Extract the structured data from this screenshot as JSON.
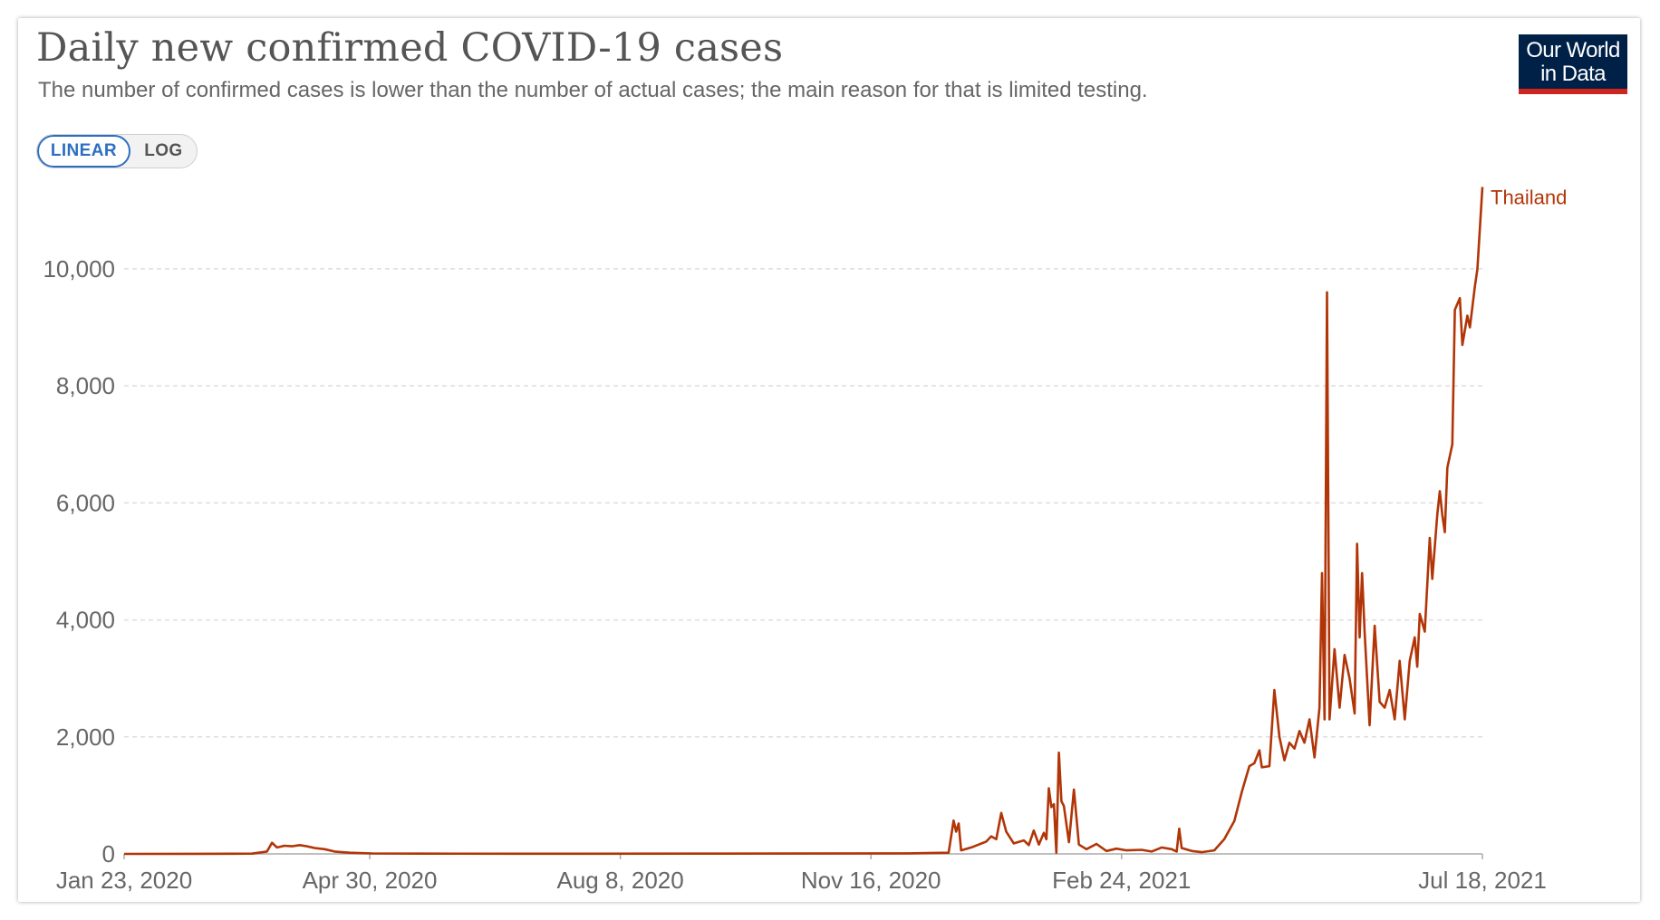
{
  "header": {
    "title": "Daily new confirmed COVID-19 cases",
    "subtitle": "The number of confirmed cases is lower than the number of actual cases; the main reason for that is limited testing."
  },
  "logo": {
    "line1": "Our World",
    "line2": "in Data"
  },
  "scale_toggle": {
    "linear_label": "LINEAR",
    "log_label": "LOG",
    "selected": "linear"
  },
  "colors": {
    "series": "#b13507",
    "grid": "#dddddd",
    "logo_bg": "#002147",
    "logo_bar": "#ce261e",
    "toggle_active": "#2c6fc1"
  },
  "chart_data": {
    "type": "line",
    "title": "Daily new confirmed COVID-19 cases",
    "xlabel": "",
    "ylabel": "",
    "xlim": [
      "2020-01-23",
      "2021-07-18"
    ],
    "ylim": [
      0,
      11500
    ],
    "grid": {
      "y": true,
      "x": false,
      "style": "dashed"
    },
    "yticks": [
      0,
      2000,
      4000,
      6000,
      8000,
      10000
    ],
    "ytick_labels": [
      "0",
      "2,000",
      "4,000",
      "6,000",
      "8,000",
      "10,000"
    ],
    "xticks": [
      "2020-01-23",
      "2020-04-30",
      "2020-08-08",
      "2020-11-16",
      "2021-02-24",
      "2021-07-18"
    ],
    "xtick_labels": [
      "Jan 23, 2020",
      "Apr 30, 2020",
      "Aug 8, 2020",
      "Nov 16, 2020",
      "Feb 24, 2021",
      "Jul 18, 2021"
    ],
    "legend": "inline-end",
    "series": [
      {
        "name": "Thailand",
        "color": "#b13507",
        "points": [
          [
            "2020-01-23",
            0
          ],
          [
            "2020-02-20",
            1
          ],
          [
            "2020-03-14",
            5
          ],
          [
            "2020-03-20",
            40
          ],
          [
            "2020-03-22",
            190
          ],
          [
            "2020-03-24",
            110
          ],
          [
            "2020-03-27",
            140
          ],
          [
            "2020-03-30",
            130
          ],
          [
            "2020-04-02",
            150
          ],
          [
            "2020-04-05",
            130
          ],
          [
            "2020-04-08",
            100
          ],
          [
            "2020-04-12",
            80
          ],
          [
            "2020-04-16",
            40
          ],
          [
            "2020-04-22",
            20
          ],
          [
            "2020-05-01",
            8
          ],
          [
            "2020-05-20",
            5
          ],
          [
            "2020-06-30",
            3
          ],
          [
            "2020-09-15",
            5
          ],
          [
            "2020-12-01",
            10
          ],
          [
            "2020-12-17",
            20
          ],
          [
            "2020-12-19",
            570
          ],
          [
            "2020-12-20",
            380
          ],
          [
            "2020-12-21",
            520
          ],
          [
            "2020-12-22",
            60
          ],
          [
            "2020-12-26",
            110
          ],
          [
            "2021-01-01",
            210
          ],
          [
            "2021-01-03",
            300
          ],
          [
            "2021-01-05",
            250
          ],
          [
            "2021-01-07",
            700
          ],
          [
            "2021-01-09",
            380
          ],
          [
            "2021-01-12",
            180
          ],
          [
            "2021-01-16",
            230
          ],
          [
            "2021-01-18",
            150
          ],
          [
            "2021-01-20",
            400
          ],
          [
            "2021-01-22",
            160
          ],
          [
            "2021-01-24",
            360
          ],
          [
            "2021-01-25",
            250
          ],
          [
            "2021-01-26",
            1120
          ],
          [
            "2021-01-27",
            800
          ],
          [
            "2021-01-28",
            850
          ],
          [
            "2021-01-29",
            20
          ],
          [
            "2021-01-30",
            1730
          ],
          [
            "2021-01-31",
            900
          ],
          [
            "2021-02-01",
            820
          ],
          [
            "2021-02-03",
            200
          ],
          [
            "2021-02-05",
            1100
          ],
          [
            "2021-02-07",
            160
          ],
          [
            "2021-02-10",
            80
          ],
          [
            "2021-02-14",
            170
          ],
          [
            "2021-02-18",
            50
          ],
          [
            "2021-02-22",
            90
          ],
          [
            "2021-02-26",
            60
          ],
          [
            "2021-03-04",
            70
          ],
          [
            "2021-03-08",
            40
          ],
          [
            "2021-03-12",
            110
          ],
          [
            "2021-03-16",
            80
          ],
          [
            "2021-03-18",
            40
          ],
          [
            "2021-03-19",
            430
          ],
          [
            "2021-03-20",
            100
          ],
          [
            "2021-03-24",
            50
          ],
          [
            "2021-03-28",
            30
          ],
          [
            "2021-04-02",
            60
          ],
          [
            "2021-04-06",
            250
          ],
          [
            "2021-04-10",
            560
          ],
          [
            "2021-04-13",
            1060
          ],
          [
            "2021-04-16",
            1500
          ],
          [
            "2021-04-18",
            1550
          ],
          [
            "2021-04-20",
            1770
          ],
          [
            "2021-04-21",
            1480
          ],
          [
            "2021-04-24",
            1500
          ],
          [
            "2021-04-26",
            2800
          ],
          [
            "2021-04-28",
            2000
          ],
          [
            "2021-04-30",
            1600
          ],
          [
            "2021-05-02",
            1900
          ],
          [
            "2021-05-04",
            1800
          ],
          [
            "2021-05-06",
            2100
          ],
          [
            "2021-05-08",
            1900
          ],
          [
            "2021-05-10",
            2300
          ],
          [
            "2021-05-12",
            1650
          ],
          [
            "2021-05-14",
            2500
          ],
          [
            "2021-05-15",
            4800
          ],
          [
            "2021-05-16",
            2300
          ],
          [
            "2021-05-17",
            9600
          ],
          [
            "2021-05-18",
            2300
          ],
          [
            "2021-05-20",
            3500
          ],
          [
            "2021-05-22",
            2500
          ],
          [
            "2021-05-24",
            3400
          ],
          [
            "2021-05-26",
            3000
          ],
          [
            "2021-05-28",
            2400
          ],
          [
            "2021-05-29",
            5300
          ],
          [
            "2021-05-30",
            3700
          ],
          [
            "2021-05-31",
            4800
          ],
          [
            "2021-06-01",
            3800
          ],
          [
            "2021-06-03",
            2200
          ],
          [
            "2021-06-05",
            3900
          ],
          [
            "2021-06-07",
            2600
          ],
          [
            "2021-06-09",
            2500
          ],
          [
            "2021-06-11",
            2800
          ],
          [
            "2021-06-13",
            2300
          ],
          [
            "2021-06-15",
            3300
          ],
          [
            "2021-06-17",
            2300
          ],
          [
            "2021-06-19",
            3300
          ],
          [
            "2021-06-21",
            3700
          ],
          [
            "2021-06-22",
            3200
          ],
          [
            "2021-06-23",
            4100
          ],
          [
            "2021-06-25",
            3800
          ],
          [
            "2021-06-27",
            5400
          ],
          [
            "2021-06-28",
            4700
          ],
          [
            "2021-06-30",
            5800
          ],
          [
            "2021-07-01",
            6200
          ],
          [
            "2021-07-02",
            5800
          ],
          [
            "2021-07-03",
            5500
          ],
          [
            "2021-07-04",
            6600
          ],
          [
            "2021-07-06",
            7000
          ],
          [
            "2021-07-07",
            9300
          ],
          [
            "2021-07-09",
            9500
          ],
          [
            "2021-07-10",
            8700
          ],
          [
            "2021-07-12",
            9200
          ],
          [
            "2021-07-13",
            9000
          ],
          [
            "2021-07-15",
            9700
          ],
          [
            "2021-07-16",
            10000
          ],
          [
            "2021-07-18",
            11400
          ]
        ]
      }
    ]
  }
}
